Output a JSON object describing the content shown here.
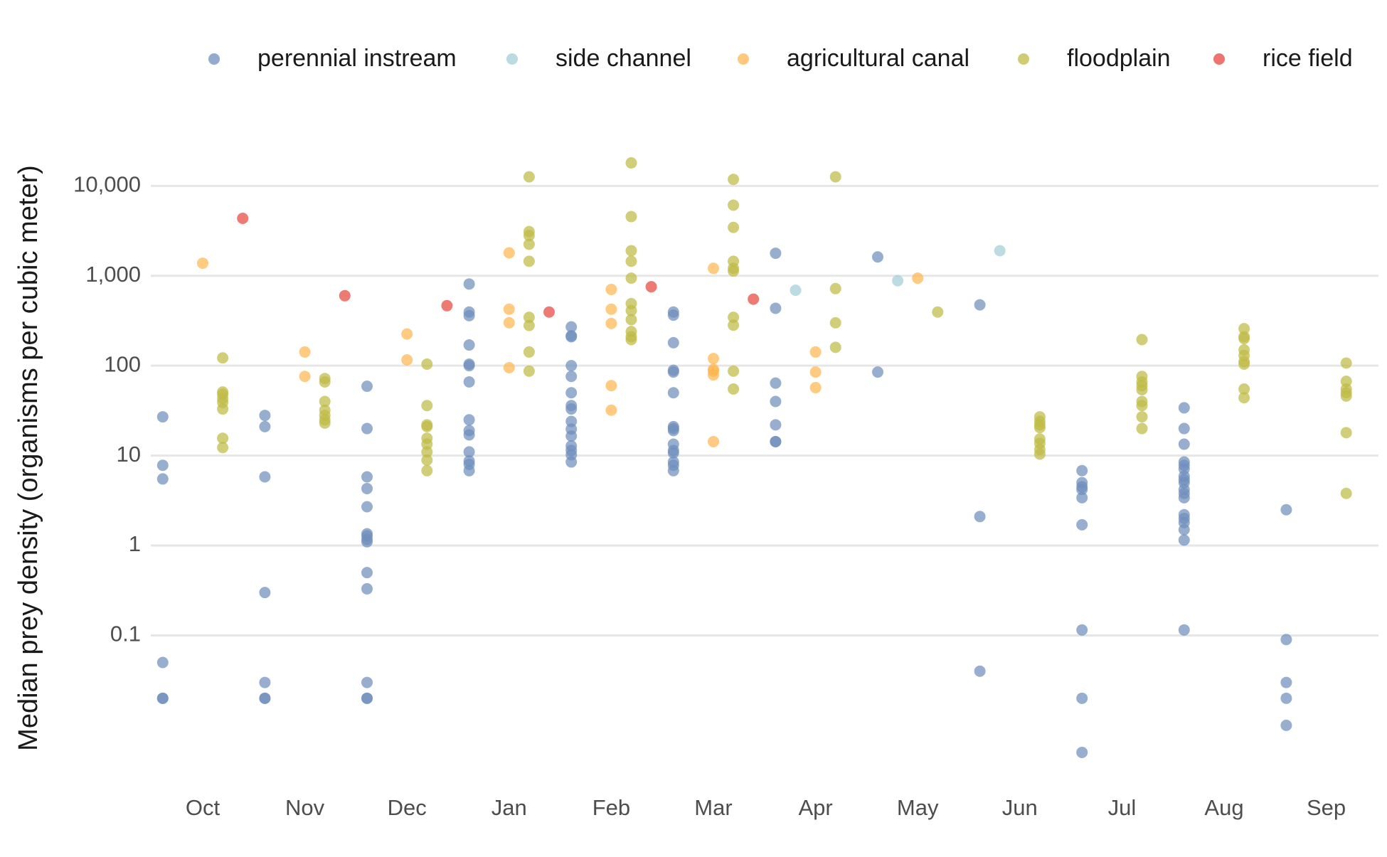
{
  "chart_data": {
    "type": "strip",
    "y_label": "Median prey density (organisms per cubic meter)",
    "yscale": "log",
    "ylim": [
      0.003,
      30000
    ],
    "yticks": [
      0.1,
      1,
      10,
      100,
      {
        "value": 1000,
        "label": "1,000"
      },
      {
        "value": 10000,
        "label": "10,000"
      }
    ],
    "grid": true,
    "legend": "top",
    "categories": [
      "Oct",
      "Nov",
      "Dec",
      "Jan",
      "Feb",
      "Mar",
      "Apr",
      "May",
      "Jun",
      "Jul",
      "Aug",
      "Sep"
    ],
    "series": [
      {
        "name": "perennial instream",
        "color": "#6f8fbd",
        "values": [
          [
            27,
            7.8,
            5.5,
            0.05,
            0.02,
            0.02
          ],
          [
            28,
            21,
            5.8,
            0.3,
            0.03,
            0.02,
            0.02
          ],
          [
            59,
            20,
            5.8,
            4.3,
            2.7,
            1.35,
            1.28,
            1.17,
            1.1,
            0.5,
            0.33,
            0.03,
            0.02,
            0.02
          ],
          [
            810,
            395,
            360,
            170,
            104,
            100,
            66,
            25,
            19,
            17,
            11,
            8.7,
            8,
            6.8
          ],
          [
            270,
            215,
            210,
            100,
            76,
            50,
            36,
            33,
            24,
            19.7,
            16.5,
            12.8,
            11.4,
            10.2,
            8.5
          ],
          [
            395,
            365,
            180,
            89,
            85,
            50,
            21,
            20,
            19,
            13.4,
            11.4,
            10.7,
            8.5,
            7.8,
            6.8
          ],
          [
            1780,
            435,
            64,
            40,
            22,
            14.3,
            14.3
          ],
          [
            1620,
            85
          ],
          [
            475,
            2.1,
            0.04
          ],
          [
            6.8,
            5,
            4.5,
            4.2,
            3.4,
            1.7,
            0.115,
            0.02,
            0.005
          ],
          [
            34,
            20,
            13.4,
            8.5,
            7.8,
            7.1,
            5.9,
            5.4,
            5,
            4.2,
            3.8,
            3.4,
            2.2,
            2,
            1.8,
            1.5,
            1.15,
            0.115
          ],
          [
            2.5,
            0.09,
            0.03,
            0.02,
            0.01
          ]
        ]
      },
      {
        "name": "side channel",
        "color": "#a3cfd6",
        "values": [
          [],
          [],
          [],
          [],
          [],
          [],
          [
            690
          ],
          [
            880
          ],
          [
            1900
          ],
          [],
          [],
          []
        ]
      },
      {
        "name": "agricultural canal",
        "color": "#ffb550",
        "values": [
          [
            1380
          ],
          [
            142,
            76
          ],
          [
            225,
            116
          ],
          [
            1800,
            425,
            300,
            95
          ],
          [
            705,
            425,
            295,
            60,
            32
          ],
          [
            1210,
            120,
            91,
            87,
            79,
            14.3
          ],
          [
            142,
            85,
            57
          ],
          [
            940
          ],
          [],
          [],
          [],
          []
        ]
      },
      {
        "name": "floodplain",
        "color": "#bfbb45",
        "values": [
          [
            122,
            51,
            48,
            43,
            39,
            33,
            15.6,
            12.3
          ],
          [
            72,
            66,
            40,
            32,
            28,
            25,
            23
          ],
          [
            104,
            36,
            22,
            21,
            15.6,
            13.4,
            11,
            8.9,
            6.8
          ],
          [
            12600,
            3100,
            2800,
            2240,
            1450,
            345,
            280,
            142,
            87
          ],
          [
            18000,
            4550,
            1900,
            1450,
            940,
            490,
            410,
            325,
            240,
            210,
            195
          ],
          [
            11800,
            6100,
            3450,
            1450,
            1210,
            1130,
            345,
            282,
            87,
            55
          ],
          [
            12600,
            720,
            300,
            160
          ],
          [
            395
          ],
          [
            27,
            24,
            22,
            20.5,
            15.3,
            13.7,
            11.7,
            10.4
          ],
          [
            195,
            76,
            66,
            60,
            54,
            40,
            36,
            27,
            20
          ],
          [
            258,
            210,
            200,
            150,
            130,
            111,
            104,
            55,
            44
          ],
          [
            107,
            67,
            55,
            50,
            46,
            18,
            3.8
          ]
        ]
      },
      {
        "name": "rice field",
        "color": "#e8463f",
        "values": [
          [
            4350
          ],
          [
            600
          ],
          [
            465
          ],
          [
            395
          ],
          [
            755
          ],
          [
            550
          ],
          [],
          [],
          [],
          [],
          [],
          []
        ]
      }
    ]
  }
}
